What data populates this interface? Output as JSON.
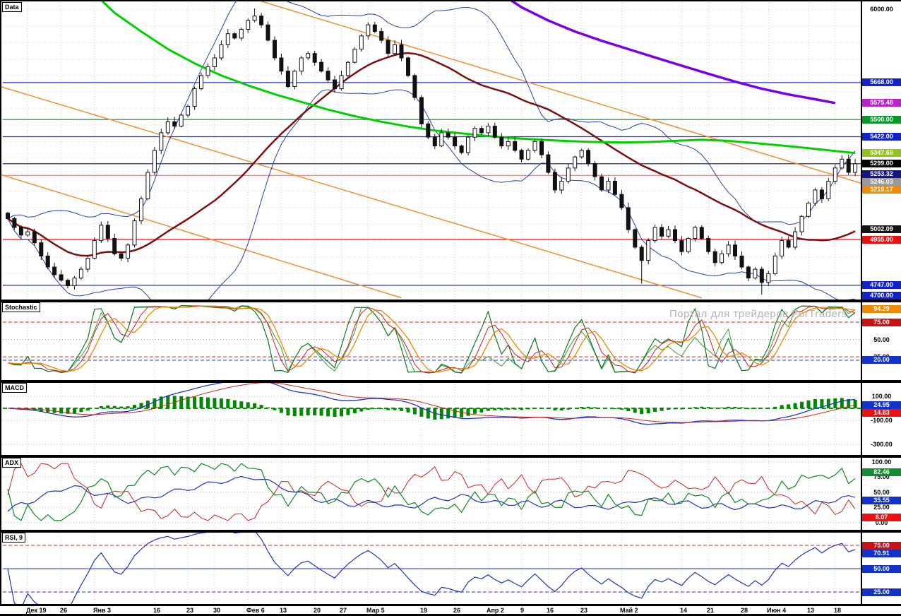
{
  "watermark": "Портал для трейдеров ForTraders",
  "panels": {
    "data": {
      "label": "Data"
    },
    "stoch": {
      "label": "Stochastic"
    },
    "macd": {
      "label": "MACD"
    },
    "adx": {
      "label": "ADX"
    },
    "rsi": {
      "label": "RSI, 9"
    }
  },
  "chart_data": {
    "type": "candlestick",
    "title": "Data",
    "x_ticks": [
      {
        "label": "Дек 19",
        "i": 3
      },
      {
        "label": "26",
        "i": 8
      },
      {
        "label": "Янв 3",
        "i": 13
      },
      {
        "label": "16",
        "i": 22
      },
      {
        "label": "23",
        "i": 27
      },
      {
        "label": "30",
        "i": 31
      },
      {
        "label": "Фев 6",
        "i": 36
      },
      {
        "label": "13",
        "i": 41
      },
      {
        "label": "20",
        "i": 46
      },
      {
        "label": "27",
        "i": 50
      },
      {
        "label": "Мар 5",
        "i": 54
      },
      {
        "label": "19",
        "i": 62
      },
      {
        "label": "26",
        "i": 67
      },
      {
        "label": "Апр 2",
        "i": 72
      },
      {
        "label": "9",
        "i": 77
      },
      {
        "label": "16",
        "i": 81
      },
      {
        "label": "23",
        "i": 86
      },
      {
        "label": "Май 2",
        "i": 92
      },
      {
        "label": "14",
        "i": 101
      },
      {
        "label": "21",
        "i": 105
      },
      {
        "label": "28",
        "i": 110
      },
      {
        "label": "Июн 4",
        "i": 114
      },
      {
        "label": "13",
        "i": 120
      },
      {
        "label": "18",
        "i": 124
      }
    ],
    "price_axis": {
      "visible_min": 4694,
      "visible_max": 6037,
      "grid_step": 75,
      "plain_labels": [
        {
          "text": "6000.00",
          "value": 6000
        }
      ]
    },
    "candles": {
      "close": [
        5050,
        5010,
        4975,
        4990,
        4940,
        4880,
        4830,
        4795,
        4770,
        4745,
        4780,
        4820,
        4870,
        4950,
        5020,
        4960,
        4890,
        4870,
        4930,
        5040,
        5140,
        5260,
        5360,
        5440,
        5490,
        5470,
        5520,
        5560,
        5640,
        5700,
        5740,
        5780,
        5840,
        5890,
        5870,
        5910,
        5950,
        5970,
        5930,
        5860,
        5780,
        5720,
        5650,
        5720,
        5780,
        5800,
        5760,
        5720,
        5680,
        5640,
        5700,
        5760,
        5820,
        5880,
        5930,
        5900,
        5860,
        5800,
        5840,
        5780,
        5700,
        5600,
        5480,
        5420,
        5380,
        5440,
        5420,
        5380,
        5350,
        5420,
        5460,
        5440,
        5470,
        5420,
        5380,
        5400,
        5360,
        5320,
        5360,
        5400,
        5340,
        5260,
        5180,
        5220,
        5280,
        5330,
        5360,
        5300,
        5240,
        5180,
        5220,
        5160,
        5100,
        5000,
        4920,
        4860,
        4950,
        5010,
        4970,
        5000,
        4950,
        4900,
        4960,
        5010,
        4960,
        4900,
        4850,
        4890,
        4930,
        4880,
        4830,
        4780,
        4820,
        4760,
        4800,
        4880,
        4950,
        4920,
        4990,
        5060,
        5120,
        5180,
        5140,
        5220,
        5280,
        5320,
        5260,
        5299
      ]
    },
    "wick_overrides": {
      "37": {
        "high": 6005
      },
      "95": {
        "low": 4755
      },
      "113": {
        "low": 4705
      }
    },
    "overlays": {
      "bollinger": {
        "period": 20,
        "mult": 1.8,
        "color": "#2a3faa"
      },
      "ma_dark": {
        "period": 32,
        "color": "#7a1010"
      },
      "green_ma": {
        "color": "#00d000",
        "points": [
          [
            8,
            6230
          ],
          [
            12,
            6100
          ],
          [
            16,
            5985
          ],
          [
            20,
            5900
          ],
          [
            24,
            5820
          ],
          [
            28,
            5755
          ],
          [
            32,
            5700
          ],
          [
            36,
            5655
          ],
          [
            40,
            5615
          ],
          [
            44,
            5580
          ],
          [
            48,
            5545
          ],
          [
            52,
            5515
          ],
          [
            56,
            5490
          ],
          [
            60,
            5468
          ],
          [
            64,
            5450
          ],
          [
            68,
            5437
          ],
          [
            72,
            5425
          ],
          [
            76,
            5415
          ],
          [
            80,
            5408
          ],
          [
            84,
            5402
          ],
          [
            88,
            5398
          ],
          [
            92,
            5396
          ],
          [
            96,
            5398
          ],
          [
            100,
            5403
          ],
          [
            104,
            5408
          ],
          [
            108,
            5403
          ],
          [
            112,
            5393
          ],
          [
            116,
            5382
          ],
          [
            120,
            5370
          ],
          [
            124,
            5357
          ],
          [
            127,
            5348
          ]
        ]
      },
      "purple_ma": {
        "color": "#7a00e6",
        "points": [
          [
            73,
            6090
          ],
          [
            77,
            6010
          ],
          [
            81,
            5950
          ],
          [
            85,
            5900
          ],
          [
            89,
            5858
          ],
          [
            93,
            5820
          ],
          [
            97,
            5782
          ],
          [
            101,
            5745
          ],
          [
            105,
            5708
          ],
          [
            109,
            5672
          ],
          [
            113,
            5640
          ],
          [
            117,
            5614
          ],
          [
            121,
            5592
          ],
          [
            124,
            5575
          ]
        ]
      },
      "trendlines": {
        "color": "#f09030",
        "lines": [
          [
            [
              -1,
              5649
            ],
            [
              104,
              4690
            ]
          ],
          [
            [
              38,
              6037
            ],
            [
              128.5,
              5205
            ]
          ],
          [
            [
              -1,
              5249
            ],
            [
              59,
              4690
            ]
          ]
        ]
      },
      "levels": [
        {
          "value": 5668,
          "color": "#2233cc"
        },
        {
          "value": 5500,
          "color": "#0b8a30"
        },
        {
          "value": 5422,
          "color": "#2233cc"
        },
        {
          "value": 5299,
          "color": "#101060"
        },
        {
          "value": 5246.03,
          "color": "#e09090"
        },
        {
          "value": 4955,
          "color": "#ee1111"
        },
        {
          "value": 4747,
          "color": "#2233cc"
        }
      ]
    },
    "price_boxes": [
      {
        "text": "5668.00",
        "value": 5668,
        "bg": "#1122cc"
      },
      {
        "text": "5575.48",
        "value": 5575.48,
        "bg": "#bb22cc"
      },
      {
        "text": "5500.00",
        "value": 5500,
        "bg": "#089929"
      },
      {
        "text": "5422.00",
        "value": 5422,
        "bg": "#1122cc"
      },
      {
        "text": "5347.69",
        "value": 5347.69,
        "bg": "#94c21c"
      },
      {
        "text": "5299.00",
        "value": 5299,
        "bg": "#000000"
      },
      {
        "text": "5253.32",
        "value": 5253.32,
        "bg": "#16168a"
      },
      {
        "text": "5246.03",
        "value": 5246.03,
        "bg": "#9a9a9a"
      },
      {
        "text": "5219.17",
        "value": 5219.17,
        "bg": "#f08a00"
      },
      {
        "text": "5002.09",
        "value": 5002.09,
        "bg": "#141414"
      },
      {
        "text": "4955.00",
        "value": 4955,
        "bg": "#e81111"
      },
      {
        "text": "4747.00",
        "value": 4747,
        "bg": "#1122cc"
      },
      {
        "text": "4700.00",
        "value": 4700,
        "bg": "#1122cc"
      }
    ],
    "indicators": {
      "stochastic": {
        "colors": {
          "k_fast": "#117722",
          "k_slow": "#33a033",
          "d": "#cc2222",
          "d_slow": "#ee8800"
        },
        "levels": [
          {
            "value": 75,
            "color": "#cc2222",
            "dash": true
          },
          {
            "value": 50,
            "color": "#999999",
            "dot": true
          },
          {
            "value": 25,
            "color": "#cc2222",
            "dash": true
          },
          {
            "value": 20,
            "color": "#2233cc",
            "dash": true
          }
        ],
        "boxes": [
          {
            "text": "94.29",
            "value": 94.29,
            "bg": "#ee8a00"
          },
          {
            "text": "75.00",
            "value": 75,
            "bg": "#cc1111"
          },
          {
            "text": "20.00",
            "value": 20,
            "bg": "#1133cc"
          }
        ],
        "plain_labels": [
          {
            "text": "50.00",
            "value": 50
          },
          {
            "text": "25.00",
            "value": 25
          }
        ]
      },
      "macd": {
        "colors": {
          "macd": "#2233cc",
          "signal": "#cc2222",
          "hist": "#008800",
          "zero": "#00a000"
        },
        "grid": [
          100,
          -100,
          -300
        ],
        "boxes": [
          {
            "text": "24.95",
            "value": 24.95,
            "bg": "#1133cc"
          },
          {
            "text": "14.83",
            "value": 14.83,
            "bg": "#ee1111"
          }
        ],
        "plain_labels": [
          {
            "text": "100.00",
            "value": 100
          },
          {
            "text": "-100.00",
            "value": -100
          },
          {
            "text": "-300.00",
            "value": -300
          }
        ]
      },
      "adx": {
        "colors": {
          "pdi": "#118822",
          "adx": "#2233bb",
          "mdi": "#cc2222"
        },
        "grid": [
          100,
          75,
          50,
          25,
          0
        ],
        "boxes": [
          {
            "text": "82.46",
            "value": 82.46,
            "bg": "#0f8f2f"
          },
          {
            "text": "35.55",
            "value": 35.55,
            "bg": "#1133cc"
          },
          {
            "text": "8.07",
            "value": 8.07,
            "bg": "#ee1111"
          }
        ],
        "plain_labels": [
          {
            "text": "100.00",
            "value": 100
          },
          {
            "text": "75.00",
            "value": 75
          },
          {
            "text": "50.00",
            "value": 50
          },
          {
            "text": "25.00",
            "value": 25
          },
          {
            "text": "0.00",
            "value": 0
          }
        ]
      },
      "rsi": {
        "period": 9,
        "color": "#2233bb",
        "levels": [
          {
            "value": 75,
            "color": "#cc2222",
            "dash": true
          },
          {
            "value": 50,
            "color": "#2233bb"
          },
          {
            "value": 25,
            "color": "#2233cc",
            "dash": true
          }
        ],
        "boxes": [
          {
            "text": "75.00",
            "value": 75,
            "bg": "#cc1111"
          },
          {
            "text": "70.91",
            "value": 70.91,
            "bg": "#1133cc"
          },
          {
            "text": "50.00",
            "value": 50,
            "bg": "#1133cc"
          },
          {
            "text": "25.00",
            "value": 25,
            "bg": "#1133cc"
          }
        ]
      }
    }
  }
}
